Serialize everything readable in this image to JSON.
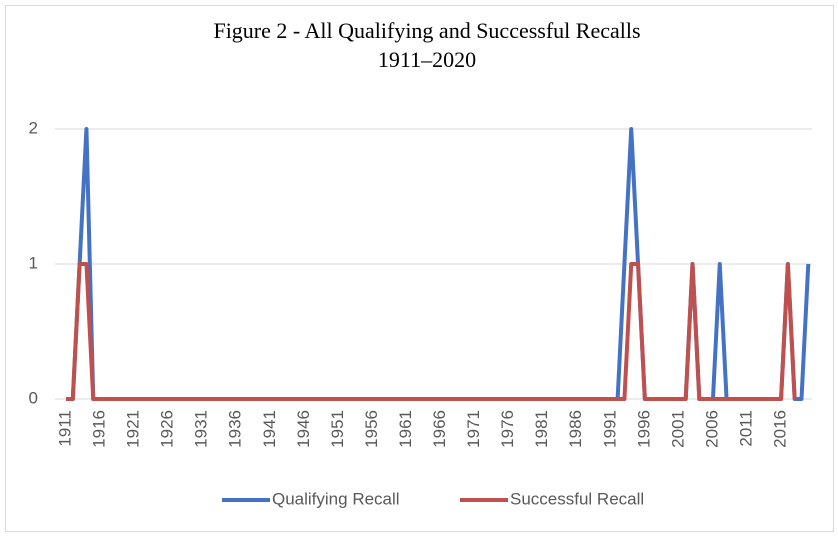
{
  "chart_data": {
    "type": "line",
    "title": "Figure 2 - All Qualifying and Successful Recalls",
    "subtitle": "1911–2020",
    "categories": [
      "1911",
      null,
      null,
      null,
      null,
      "1916",
      null,
      null,
      null,
      null,
      "1921",
      null,
      null,
      null,
      null,
      "1926",
      null,
      null,
      null,
      null,
      "1931",
      null,
      null,
      null,
      null,
      "1936",
      null,
      null,
      null,
      null,
      "1941",
      null,
      null,
      null,
      null,
      "1946",
      null,
      null,
      null,
      null,
      "1951",
      null,
      null,
      null,
      null,
      "1956",
      null,
      null,
      null,
      null,
      "1961",
      null,
      null,
      null,
      null,
      "1966",
      null,
      null,
      null,
      null,
      "1971",
      null,
      null,
      null,
      null,
      "1976",
      null,
      null,
      null,
      null,
      "1981",
      null,
      null,
      null,
      null,
      "1986",
      null,
      null,
      null,
      null,
      "1991",
      null,
      null,
      null,
      null,
      "1996",
      null,
      null,
      null,
      null,
      "2001",
      null,
      null,
      null,
      null,
      "2006",
      null,
      null,
      null,
      null,
      "2011",
      null,
      null,
      null,
      null,
      "2016",
      null,
      null,
      null,
      null
    ],
    "series": [
      {
        "name": "Qualifying Recall",
        "color": "#4472c4",
        "values": [
          0,
          0,
          1,
          2,
          0,
          0,
          0,
          0,
          0,
          0,
          0,
          0,
          0,
          0,
          0,
          0,
          0,
          0,
          0,
          0,
          0,
          0,
          0,
          0,
          0,
          0,
          0,
          0,
          0,
          0,
          0,
          0,
          0,
          0,
          0,
          0,
          0,
          0,
          0,
          0,
          0,
          0,
          0,
          0,
          0,
          0,
          0,
          0,
          0,
          0,
          0,
          0,
          0,
          0,
          0,
          0,
          0,
          0,
          0,
          0,
          0,
          0,
          0,
          0,
          0,
          0,
          0,
          0,
          0,
          0,
          0,
          0,
          0,
          0,
          0,
          0,
          0,
          0,
          0,
          0,
          0,
          0,
          1,
          2,
          1,
          0,
          0,
          0,
          0,
          0,
          0,
          0,
          1,
          0,
          0,
          0,
          1,
          0,
          0,
          0,
          0,
          0,
          0,
          0,
          0,
          0,
          1,
          0,
          0,
          1
        ]
      },
      {
        "name": "Successful Recall",
        "color": "#c0504d",
        "values": [
          0,
          0,
          1,
          1,
          0,
          0,
          0,
          0,
          0,
          0,
          0,
          0,
          0,
          0,
          0,
          0,
          0,
          0,
          0,
          0,
          0,
          0,
          0,
          0,
          0,
          0,
          0,
          0,
          0,
          0,
          0,
          0,
          0,
          0,
          0,
          0,
          0,
          0,
          0,
          0,
          0,
          0,
          0,
          0,
          0,
          0,
          0,
          0,
          0,
          0,
          0,
          0,
          0,
          0,
          0,
          0,
          0,
          0,
          0,
          0,
          0,
          0,
          0,
          0,
          0,
          0,
          0,
          0,
          0,
          0,
          0,
          0,
          0,
          0,
          0,
          0,
          0,
          0,
          0,
          0,
          0,
          0,
          0,
          1,
          1,
          0,
          0,
          0,
          0,
          0,
          0,
          0,
          1,
          0,
          0,
          0,
          0,
          0,
          0,
          0,
          0,
          0,
          0,
          0,
          0,
          0,
          1,
          0,
          null,
          null
        ]
      }
    ],
    "ylim": [
      0,
      2
    ],
    "yticks": [
      0,
      1,
      2
    ],
    "grid": true,
    "legend": "bottom"
  }
}
